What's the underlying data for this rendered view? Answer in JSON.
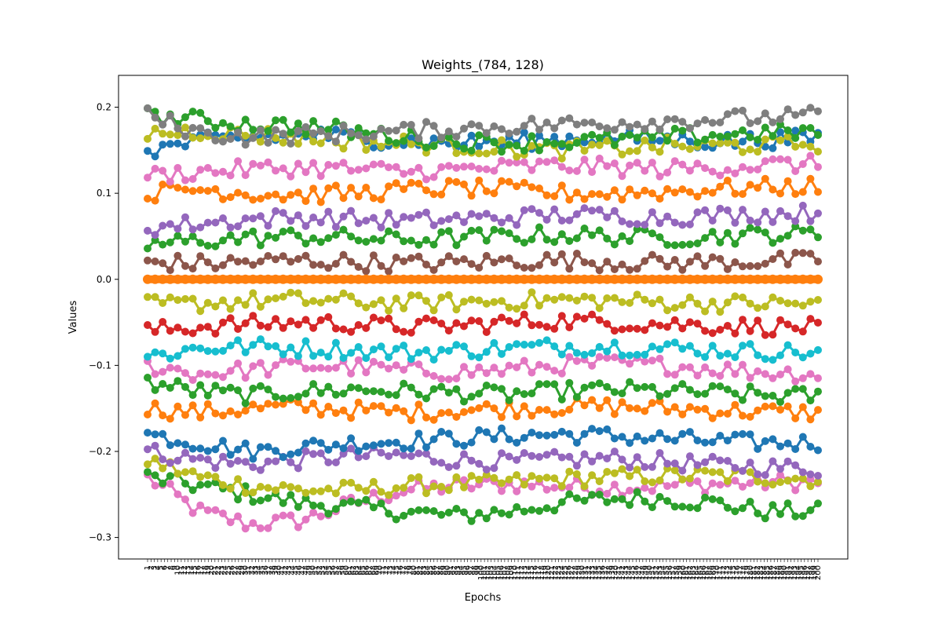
{
  "chart_data": {
    "type": "line",
    "title": "Weights_(784, 128)",
    "xlabel": "Epochs",
    "ylabel": "Values",
    "grid": false,
    "legend": "none",
    "markers": "circle",
    "ylim": [
      -0.325,
      0.237
    ],
    "y_ticks": [
      -0.3,
      -0.2,
      -0.1,
      0.0,
      0.1,
      0.2
    ],
    "y_tick_labels": [
      "−0.3",
      "−0.2",
      "−0.1",
      "0.0",
      "0.1",
      "0.2"
    ],
    "x_tick_labels_note": "epoch numbers 1..N, rotated 90°, overlapping and illegible",
    "color_cycle": [
      "#1f77b4",
      "#ff7f0e",
      "#2ca02c",
      "#d62728",
      "#9467bd",
      "#8c564b",
      "#e377c2",
      "#7f7f7f",
      "#bcbd22",
      "#17becf"
    ],
    "series": [
      {
        "color": "#e377c2",
        "values": [
          -0.23,
          -0.27,
          -0.285,
          -0.28,
          -0.26,
          -0.245,
          -0.24,
          -0.238,
          -0.24,
          -0.242,
          -0.24,
          -0.238,
          -0.236,
          -0.235
        ]
      },
      {
        "color": "#2ca02c",
        "values": [
          -0.23,
          -0.24,
          -0.25,
          -0.26,
          -0.265,
          -0.27,
          -0.275,
          -0.27,
          -0.26,
          -0.255,
          -0.255,
          -0.26,
          -0.27,
          -0.27
        ]
      },
      {
        "color": "#bcbd22",
        "values": [
          -0.21,
          -0.23,
          -0.24,
          -0.245,
          -0.245,
          -0.24,
          -0.238,
          -0.236,
          -0.232,
          -0.23,
          -0.228,
          -0.228,
          -0.23,
          -0.232
        ]
      },
      {
        "color": "#9467bd",
        "values": [
          -0.2,
          -0.21,
          -0.215,
          -0.21,
          -0.205,
          -0.205,
          -0.21,
          -0.212,
          -0.21,
          -0.208,
          -0.212,
          -0.216,
          -0.218,
          -0.22
        ]
      },
      {
        "color": "#1f77b4",
        "values": [
          -0.18,
          -0.19,
          -0.2,
          -0.195,
          -0.19,
          -0.188,
          -0.185,
          -0.182,
          -0.18,
          -0.182,
          -0.185,
          -0.188,
          -0.19,
          -0.19
        ]
      },
      {
        "color": "#ff7f0e",
        "values": [
          -0.15,
          -0.155,
          -0.15,
          -0.148,
          -0.152,
          -0.155,
          -0.152,
          -0.15,
          -0.148,
          -0.148,
          -0.15,
          -0.152,
          -0.154,
          -0.155
        ]
      },
      {
        "color": "#2ca02c",
        "values": [
          -0.12,
          -0.13,
          -0.135,
          -0.13,
          -0.128,
          -0.13,
          -0.132,
          -0.134,
          -0.13,
          -0.128,
          -0.13,
          -0.132,
          -0.135,
          -0.136
        ]
      },
      {
        "color": "#e377c2",
        "values": [
          -0.1,
          -0.11,
          -0.105,
          -0.1,
          -0.102,
          -0.106,
          -0.108,
          -0.105,
          -0.1,
          -0.098,
          -0.1,
          -0.104,
          -0.108,
          -0.11
        ]
      },
      {
        "color": "#17becf",
        "values": [
          -0.09,
          -0.08,
          -0.078,
          -0.08,
          -0.082,
          -0.085,
          -0.083,
          -0.08,
          -0.078,
          -0.078,
          -0.08,
          -0.082,
          -0.084,
          -0.085
        ]
      },
      {
        "color": "#d62728",
        "values": [
          -0.06,
          -0.055,
          -0.052,
          -0.05,
          -0.052,
          -0.055,
          -0.054,
          -0.05,
          -0.048,
          -0.05,
          -0.052,
          -0.054,
          -0.055,
          -0.056
        ]
      },
      {
        "color": "#bcbd22",
        "values": [
          -0.03,
          -0.028,
          -0.025,
          -0.024,
          -0.026,
          -0.028,
          -0.027,
          -0.025,
          -0.024,
          -0.025,
          -0.027,
          -0.028,
          -0.028,
          -0.029
        ]
      },
      {
        "color": "#8c564b",
        "values": [
          0.02,
          0.018,
          0.02,
          0.022,
          0.02,
          0.018,
          0.019,
          0.021,
          0.022,
          0.02,
          0.019,
          0.02,
          0.021,
          0.022
        ]
      },
      {
        "color": "#2ca02c",
        "values": [
          0.04,
          0.045,
          0.048,
          0.05,
          0.048,
          0.046,
          0.048,
          0.05,
          0.052,
          0.05,
          0.048,
          0.05,
          0.052,
          0.053
        ]
      },
      {
        "color": "#9467bd",
        "values": [
          0.06,
          0.065,
          0.07,
          0.072,
          0.07,
          0.068,
          0.07,
          0.072,
          0.075,
          0.074,
          0.072,
          0.074,
          0.076,
          0.077
        ]
      },
      {
        "color": "#ff7f0e",
        "values": [
          0.1,
          0.105,
          0.1,
          0.098,
          0.1,
          0.104,
          0.106,
          0.104,
          0.1,
          0.1,
          0.102,
          0.105,
          0.107,
          0.108
        ]
      },
      {
        "color": "#e377c2",
        "values": [
          0.12,
          0.125,
          0.128,
          0.13,
          0.128,
          0.125,
          0.127,
          0.13,
          0.132,
          0.13,
          0.128,
          0.13,
          0.133,
          0.134
        ]
      },
      {
        "color": "#1f77b4",
        "values": [
          0.15,
          0.16,
          0.165,
          0.168,
          0.165,
          0.16,
          0.158,
          0.16,
          0.163,
          0.165,
          0.163,
          0.16,
          0.162,
          0.164
        ]
      },
      {
        "color": "#bcbd22",
        "values": [
          0.17,
          0.172,
          0.168,
          0.165,
          0.16,
          0.158,
          0.155,
          0.152,
          0.15,
          0.152,
          0.155,
          0.155,
          0.156,
          0.158
        ]
      },
      {
        "color": "#2ca02c",
        "values": [
          0.19,
          0.185,
          0.18,
          0.178,
          0.172,
          0.165,
          0.16,
          0.158,
          0.16,
          0.162,
          0.165,
          0.168,
          0.17,
          0.172
        ]
      },
      {
        "color": "#7f7f7f",
        "values": [
          0.19,
          0.17,
          0.165,
          0.168,
          0.17,
          0.172,
          0.175,
          0.178,
          0.18,
          0.182,
          0.184,
          0.186,
          0.188,
          0.19
        ]
      },
      {
        "color": "#ff7f0e",
        "values": [
          0.0,
          0.0,
          0.0,
          0.0,
          0.0,
          0.0,
          0.0,
          0.0,
          0.0,
          0.0,
          0.0,
          0.0,
          0.0,
          0.0
        ]
      }
    ]
  }
}
